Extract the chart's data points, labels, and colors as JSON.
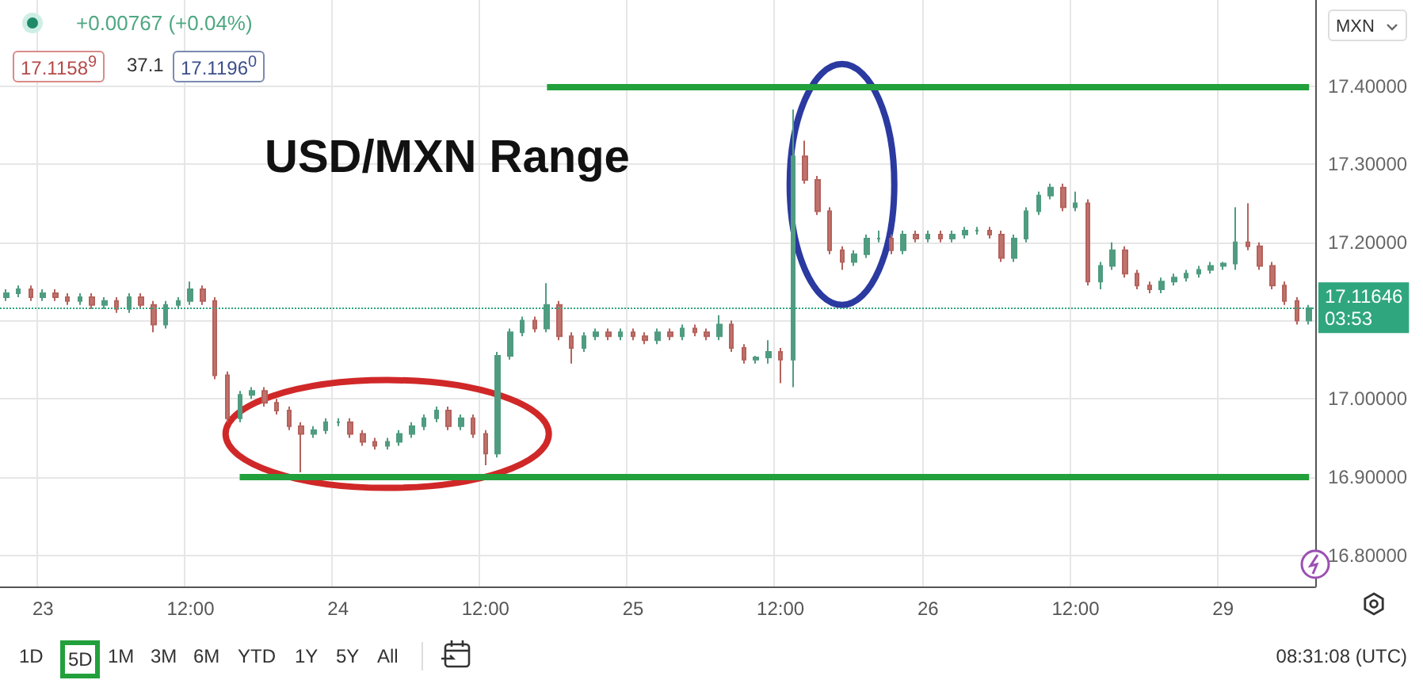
{
  "chart_data": {
    "type": "candlestick",
    "title": "USD/MXN Range",
    "annotations": [
      "+0.00767 (+0.04%)",
      "17.1158$^{9}$",
      "37.1",
      "17.1196$^{0}$",
      "MXN",
      "1D",
      "5D",
      "1M",
      "3M",
      "6M",
      "YTD",
      "1Y",
      "5Y",
      "All",
      "08:31:08 (UTC)"
    ],
    "categories": [
      null,
      null,
      null,
      "23",
      null,
      null,
      null,
      null,
      null,
      null,
      null,
      null,
      null,
      null,
      null,
      "12:00",
      null,
      null,
      null,
      null,
      null,
      null,
      null,
      null,
      null,
      null,
      null,
      "24",
      null,
      null,
      null,
      null,
      null,
      null,
      null,
      null,
      null,
      null,
      null,
      "12:00",
      null,
      null,
      null,
      null,
      null,
      null,
      null,
      null,
      null,
      null,
      null,
      "25",
      null,
      null,
      null,
      null,
      null,
      null,
      null,
      null,
      null,
      null,
      null,
      "12:00",
      null,
      null,
      null,
      null,
      null,
      null,
      null,
      null,
      null,
      null,
      null,
      "26",
      null,
      null,
      null,
      null,
      null,
      null,
      null,
      null,
      null,
      null,
      null,
      "12:00",
      null,
      null,
      null,
      null,
      null,
      null,
      null,
      null,
      null,
      null,
      null,
      "29",
      null,
      null,
      null,
      null,
      null,
      null,
      null
    ],
    "ohlc": [
      [
        17.13,
        17.14,
        17.125,
        17.135
      ],
      [
        17.135,
        17.145,
        17.13,
        17.14
      ],
      [
        17.14,
        17.145,
        17.125,
        17.13
      ],
      [
        17.13,
        17.14,
        17.125,
        17.135
      ],
      [
        17.135,
        17.14,
        17.125,
        17.13
      ],
      [
        17.13,
        17.135,
        17.12,
        17.125
      ],
      [
        17.125,
        17.135,
        17.12,
        17.13
      ],
      [
        17.13,
        17.135,
        17.115,
        17.12
      ],
      [
        17.12,
        17.13,
        17.115,
        17.125
      ],
      [
        17.125,
        17.13,
        17.11,
        17.115
      ],
      [
        17.115,
        17.135,
        17.11,
        17.13
      ],
      [
        17.13,
        17.135,
        17.115,
        17.12
      ],
      [
        17.12,
        17.125,
        17.085,
        17.095
      ],
      [
        17.095,
        17.125,
        17.09,
        17.12
      ],
      [
        17.12,
        17.13,
        17.115,
        17.125
      ],
      [
        17.125,
        17.15,
        17.12,
        17.14
      ],
      [
        17.14,
        17.145,
        17.12,
        17.125
      ],
      [
        17.125,
        17.13,
        17.025,
        17.03
      ],
      [
        17.03,
        17.035,
        16.97,
        16.975
      ],
      [
        16.975,
        17.01,
        16.97,
        17.005
      ],
      [
        17.005,
        17.015,
        17.0,
        17.01
      ],
      [
        17.01,
        17.015,
        16.99,
        16.995
      ],
      [
        16.995,
        17.0,
        16.98,
        16.985
      ],
      [
        16.985,
        16.99,
        16.96,
        16.965
      ],
      [
        16.965,
        16.97,
        16.906,
        16.955
      ],
      [
        16.955,
        16.965,
        16.95,
        16.96
      ],
      [
        16.96,
        16.975,
        16.955,
        16.97
      ],
      [
        16.97,
        16.975,
        16.965,
        16.97
      ],
      [
        16.97,
        16.975,
        16.95,
        16.955
      ],
      [
        16.955,
        16.96,
        16.94,
        16.945
      ],
      [
        16.945,
        16.95,
        16.935,
        16.94
      ],
      [
        16.94,
        16.95,
        16.935,
        16.945
      ],
      [
        16.945,
        16.96,
        16.94,
        16.955
      ],
      [
        16.955,
        16.97,
        16.95,
        16.965
      ],
      [
        16.965,
        16.98,
        16.96,
        16.975
      ],
      [
        16.975,
        16.99,
        16.97,
        16.985
      ],
      [
        16.985,
        16.99,
        16.96,
        16.965
      ],
      [
        16.965,
        16.98,
        16.96,
        16.975
      ],
      [
        16.975,
        16.98,
        16.95,
        16.955
      ],
      [
        16.955,
        16.96,
        16.915,
        16.93
      ],
      [
        16.93,
        17.06,
        16.925,
        17.055
      ],
      [
        17.055,
        17.09,
        17.05,
        17.085
      ],
      [
        17.085,
        17.105,
        17.08,
        17.1
      ],
      [
        17.1,
        17.105,
        17.085,
        17.09
      ],
      [
        17.09,
        17.148,
        17.085,
        17.12
      ],
      [
        17.12,
        17.125,
        17.075,
        17.08
      ],
      [
        17.08,
        17.085,
        17.045,
        17.065
      ],
      [
        17.065,
        17.085,
        17.06,
        17.08
      ],
      [
        17.08,
        17.09,
        17.075,
        17.085
      ],
      [
        17.085,
        17.09,
        17.075,
        17.08
      ],
      [
        17.08,
        17.09,
        17.075,
        17.085
      ],
      [
        17.085,
        17.09,
        17.075,
        17.08
      ],
      [
        17.08,
        17.085,
        17.07,
        17.075
      ],
      [
        17.075,
        17.09,
        17.07,
        17.085
      ],
      [
        17.085,
        17.09,
        17.075,
        17.08
      ],
      [
        17.08,
        17.095,
        17.075,
        17.09
      ],
      [
        17.09,
        17.095,
        17.08,
        17.085
      ],
      [
        17.085,
        17.09,
        17.075,
        17.08
      ],
      [
        17.08,
        17.107,
        17.075,
        17.095
      ],
      [
        17.095,
        17.1,
        17.06,
        17.065
      ],
      [
        17.065,
        17.07,
        17.045,
        17.05
      ],
      [
        17.05,
        17.055,
        17.045,
        17.053
      ],
      [
        17.053,
        17.075,
        17.045,
        17.06
      ],
      [
        17.06,
        17.065,
        17.02,
        17.05
      ],
      [
        17.05,
        17.37,
        17.015,
        17.31
      ],
      [
        17.31,
        17.33,
        17.275,
        17.28
      ],
      [
        17.28,
        17.285,
        17.235,
        17.24
      ],
      [
        17.24,
        17.245,
        17.185,
        17.19
      ],
      [
        17.19,
        17.195,
        17.165,
        17.175
      ],
      [
        17.175,
        17.19,
        17.17,
        17.185
      ],
      [
        17.185,
        17.21,
        17.18,
        17.205
      ],
      [
        17.205,
        17.215,
        17.2,
        17.205
      ],
      [
        17.205,
        17.21,
        17.185,
        17.19
      ],
      [
        17.19,
        17.215,
        17.185,
        17.21
      ],
      [
        17.21,
        17.215,
        17.2,
        17.205
      ],
      [
        17.205,
        17.215,
        17.2,
        17.21
      ],
      [
        17.21,
        17.215,
        17.2,
        17.205
      ],
      [
        17.205,
        17.215,
        17.2,
        17.21
      ],
      [
        17.21,
        17.22,
        17.205,
        17.215
      ],
      [
        17.215,
        17.22,
        17.21,
        17.215
      ],
      [
        17.215,
        17.22,
        17.205,
        17.21
      ],
      [
        17.21,
        17.215,
        17.175,
        17.18
      ],
      [
        17.18,
        17.21,
        17.175,
        17.205
      ],
      [
        17.205,
        17.245,
        17.2,
        17.24
      ],
      [
        17.24,
        17.265,
        17.235,
        17.26
      ],
      [
        17.26,
        17.275,
        17.255,
        17.27
      ],
      [
        17.27,
        17.275,
        17.24,
        17.245
      ],
      [
        17.245,
        17.265,
        17.24,
        17.25
      ],
      [
        17.25,
        17.255,
        17.145,
        17.15
      ],
      [
        17.15,
        17.175,
        17.14,
        17.17
      ],
      [
        17.17,
        17.2,
        17.165,
        17.19
      ],
      [
        17.19,
        17.195,
        17.155,
        17.16
      ],
      [
        17.16,
        17.165,
        17.14,
        17.145
      ],
      [
        17.145,
        17.15,
        17.135,
        17.14
      ],
      [
        17.14,
        17.155,
        17.135,
        17.15
      ],
      [
        17.15,
        17.16,
        17.145,
        17.155
      ],
      [
        17.155,
        17.165,
        17.15,
        17.16
      ],
      [
        17.16,
        17.17,
        17.155,
        17.165
      ],
      [
        17.165,
        17.175,
        17.16,
        17.17
      ],
      [
        17.17,
        17.175,
        17.165,
        17.173
      ],
      [
        17.173,
        17.245,
        17.165,
        17.2
      ],
      [
        17.2,
        17.25,
        17.19,
        17.195
      ],
      [
        17.195,
        17.2,
        17.165,
        17.17
      ],
      [
        17.17,
        17.175,
        17.14,
        17.145
      ],
      [
        17.145,
        17.15,
        17.12,
        17.125
      ],
      [
        17.125,
        17.13,
        17.095,
        17.1
      ],
      [
        17.1,
        17.12,
        17.095,
        17.116
      ]
    ],
    "ylim": [
      16.76,
      17.51
    ],
    "yticks": [
      {
        "value": 16.8,
        "label": "16.80000"
      },
      {
        "value": 16.9,
        "label": "16.90000"
      },
      {
        "value": 17.0,
        "label": "17.00000"
      },
      {
        "value": 17.1,
        "label": null
      },
      {
        "value": 17.2,
        "label": "17.20000"
      },
      {
        "value": 17.3,
        "label": "17.30000"
      },
      {
        "value": 17.4,
        "label": "17.40000"
      }
    ],
    "ref_lines": [
      {
        "axis": "y",
        "value": 17.4,
        "color": "#22a03c",
        "line_style": "solid"
      },
      {
        "axis": "y",
        "value": 16.9,
        "color": "#22a03c",
        "line_style": "solid"
      },
      {
        "axis": "y",
        "value": 17.11646,
        "label": "17.11646\n03:53",
        "color": "#2fa67e",
        "line_style": "dotted"
      }
    ],
    "grid": true
  }
}
